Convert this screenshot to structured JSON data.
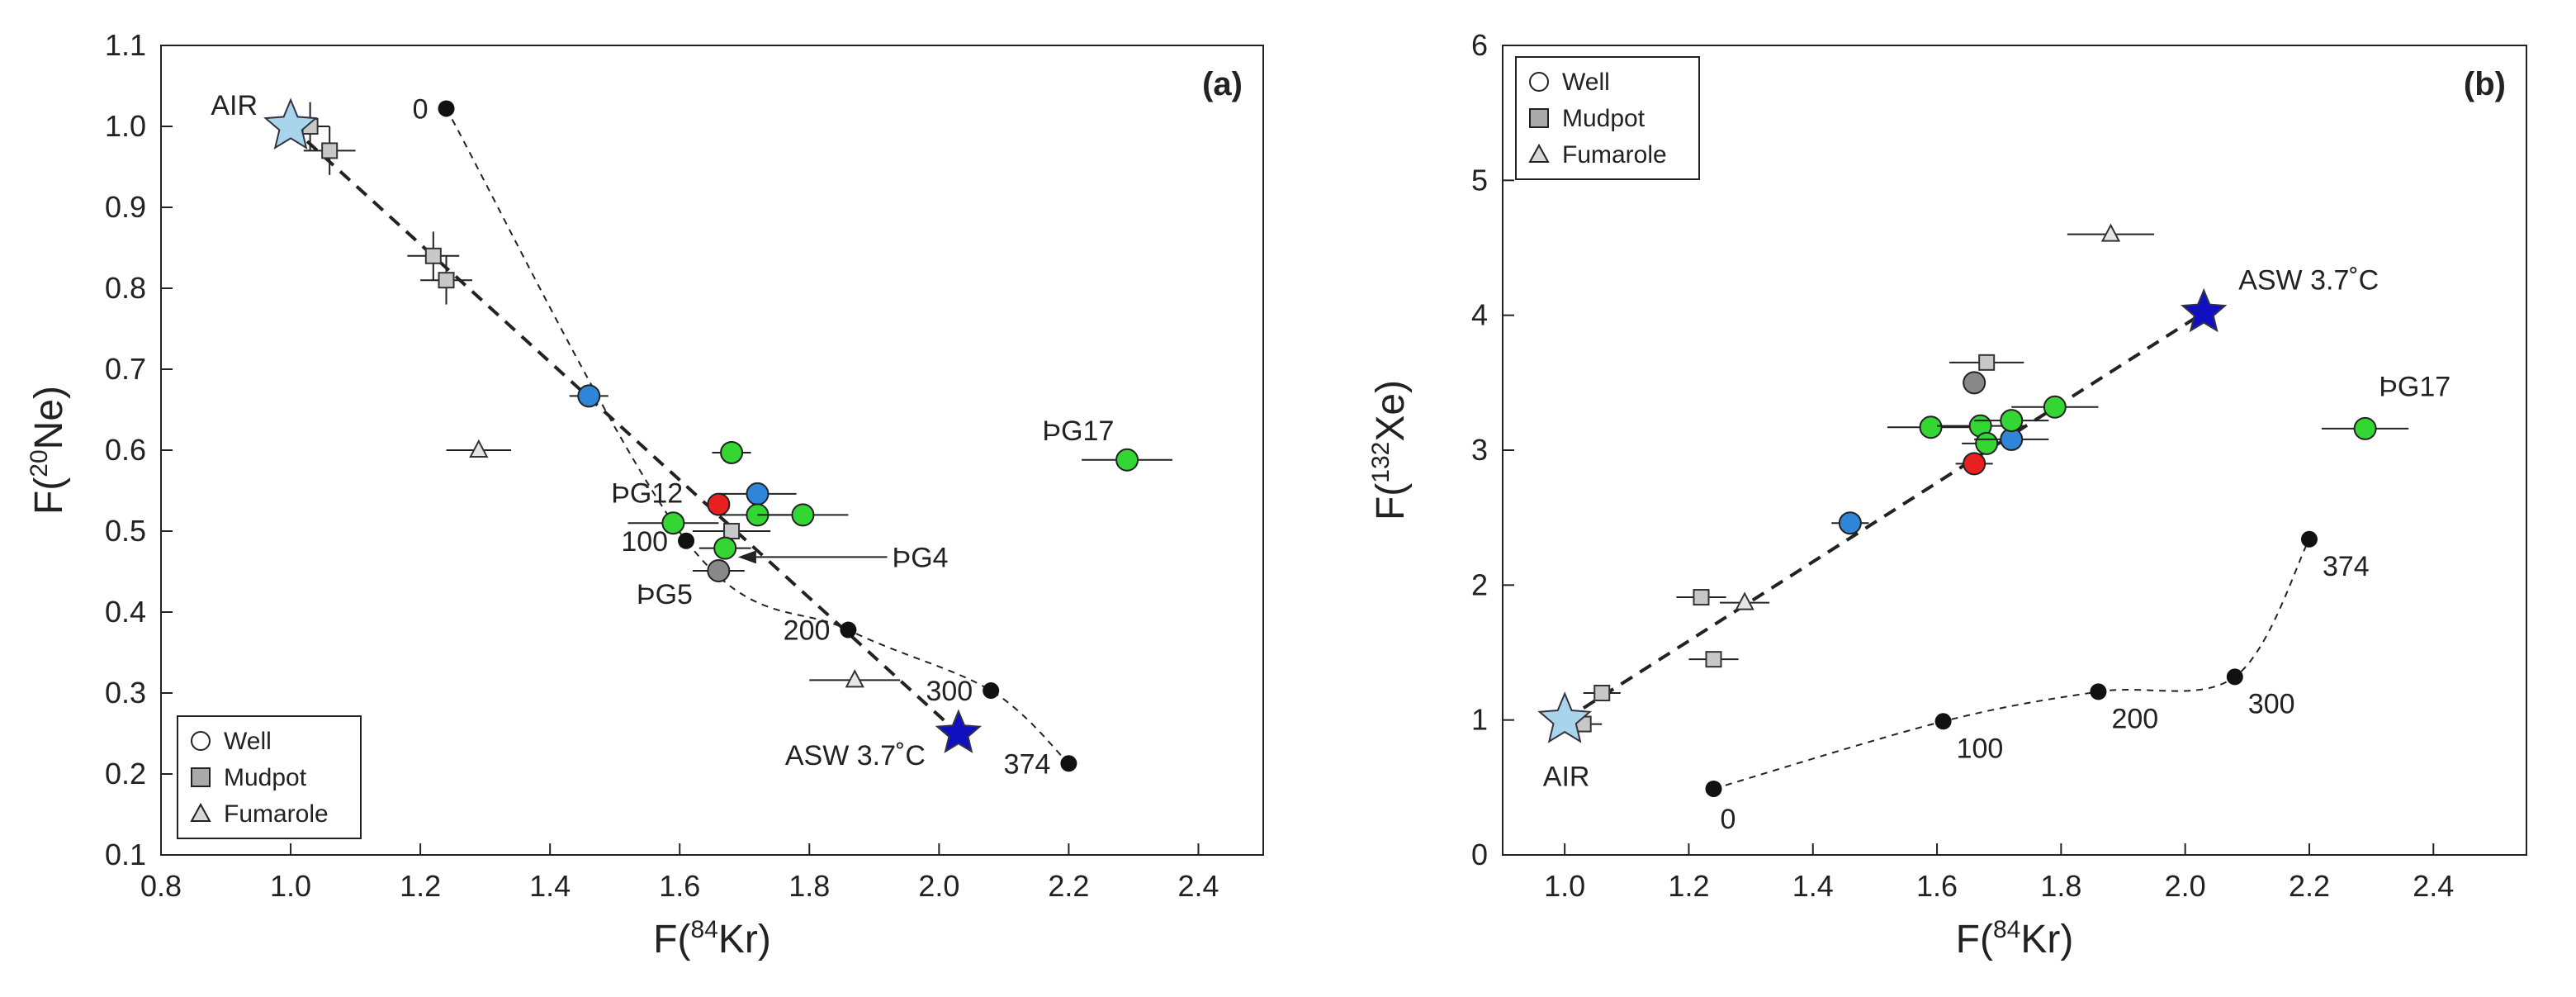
{
  "chart_data": [
    {
      "type": "scatter",
      "panel_label": "(a)",
      "xlabel": {
        "pre": "F(",
        "sup": "84",
        "post": "Kr)"
      },
      "ylabel": {
        "pre": "F(",
        "sup": "20",
        "post": "Ne)"
      },
      "xlim": [
        0.8,
        2.5
      ],
      "ylim": [
        0.1,
        1.1
      ],
      "xticks": [
        0.8,
        1.0,
        1.2,
        1.4,
        1.6,
        1.8,
        2.0,
        2.2,
        2.4
      ],
      "yticks": [
        0.1,
        0.2,
        0.3,
        0.4,
        0.5,
        0.6,
        0.7,
        0.8,
        0.9,
        1.0,
        1.1
      ],
      "xtick_labels": [
        "0.8",
        "1.0",
        "1.2",
        "1.4",
        "1.6",
        "1.8",
        "2.0",
        "2.2",
        "2.4"
      ],
      "ytick_labels": [
        "0.1",
        "0.2",
        "0.3",
        "0.4",
        "0.5",
        "0.6",
        "0.7",
        "0.8",
        "0.9",
        "1.0",
        "1.1"
      ],
      "legend": {
        "position": "bottom-left",
        "items": [
          {
            "label": "Well",
            "marker": "circle"
          },
          {
            "label": "Mudpot",
            "marker": "square"
          },
          {
            "label": "Fumarole",
            "marker": "triangle"
          }
        ]
      },
      "endmembers": [
        {
          "name": "AIR",
          "label": "AIR",
          "x": 1.0,
          "y": 1.0,
          "color": "#a8d4ec",
          "label_pos": "left"
        },
        {
          "name": "ASW",
          "label": "ASW 3.7˚C",
          "x": 2.03,
          "y": 0.25,
          "color": "#1010c0",
          "label_pos": "left"
        }
      ],
      "mixing_line": [
        [
          1.0,
          1.0
        ],
        [
          2.03,
          0.25
        ]
      ],
      "solubility_curve": {
        "points": [
          {
            "x": 1.24,
            "y": 1.022,
            "label": "0",
            "label_pos": "left"
          },
          {
            "x": 1.61,
            "y": 0.488,
            "label": "100",
            "label_pos": "left"
          },
          {
            "x": 1.86,
            "y": 0.378,
            "label": "200",
            "label_pos": "left"
          },
          {
            "x": 2.08,
            "y": 0.303,
            "label": "300",
            "label_pos": "left"
          },
          {
            "x": 2.2,
            "y": 0.213,
            "label": "374",
            "label_pos": "left"
          }
        ]
      },
      "wells": [
        {
          "x": 1.46,
          "y": 0.667,
          "color": "#2f86d8",
          "xerr": 0.03,
          "yerr": 0.0
        },
        {
          "x": 1.68,
          "y": 0.597,
          "color": "#33d633",
          "xerr": 0.03,
          "yerr": 0.0
        },
        {
          "x": 1.66,
          "y": 0.533,
          "color": "#e82020",
          "xerr": 0.0,
          "yerr": 0.0
        },
        {
          "x": 1.72,
          "y": 0.546,
          "color": "#2f86d8",
          "xerr": 0.06,
          "yerr": 0.0
        },
        {
          "x": 1.72,
          "y": 0.52,
          "color": "#33d633",
          "xerr": 0.06,
          "yerr": 0.0
        },
        {
          "x": 1.79,
          "y": 0.52,
          "color": "#33d633",
          "xerr": 0.07,
          "yerr": 0.0
        },
        {
          "x": 1.59,
          "y": 0.51,
          "color": "#33d633",
          "xerr": 0.07,
          "yerr": 0.0
        },
        {
          "x": 1.67,
          "y": 0.479,
          "color": "#33d633",
          "xerr": 0.04,
          "yerr": 0.0
        },
        {
          "x": 1.66,
          "y": 0.451,
          "color": "#888888",
          "xerr": 0.04,
          "yerr": 0.0
        },
        {
          "x": 2.29,
          "y": 0.588,
          "color": "#33d633",
          "xerr": 0.07,
          "yerr": 0.0
        }
      ],
      "mudpots": [
        {
          "x": 1.03,
          "y": 1.0,
          "xerr": 0.03,
          "yerr": 0.03
        },
        {
          "x": 1.06,
          "y": 0.97,
          "xerr": 0.04,
          "yerr": 0.03
        },
        {
          "x": 1.22,
          "y": 0.84,
          "xerr": 0.04,
          "yerr": 0.03
        },
        {
          "x": 1.24,
          "y": 0.81,
          "xerr": 0.04,
          "yerr": 0.03
        },
        {
          "x": 1.68,
          "y": 0.5,
          "xerr": 0.06,
          "yerr": 0.0
        }
      ],
      "fumaroles": [
        {
          "x": 1.29,
          "y": 0.6,
          "xerr": 0.05,
          "yerr": 0.0
        },
        {
          "x": 1.87,
          "y": 0.316,
          "xerr": 0.07,
          "yerr": 0.0
        }
      ],
      "arrow": {
        "from": [
          1.92,
          0.468
        ],
        "to": [
          1.69,
          0.468
        ],
        "label": "ÞG4"
      },
      "annotations": [
        {
          "text": "ÞG12",
          "x": 1.605,
          "y": 0.535,
          "anchor": "end"
        },
        {
          "text": "ÞG5",
          "x": 1.62,
          "y": 0.41,
          "anchor": "end"
        },
        {
          "text": "ÞG17",
          "x": 2.27,
          "y": 0.612,
          "anchor": "end"
        }
      ]
    },
    {
      "type": "scatter",
      "panel_label": "(b)",
      "xlabel": {
        "pre": "F(",
        "sup": "84",
        "post": "Kr)"
      },
      "ylabel": {
        "pre": "F(",
        "sup": "132",
        "post": "Xe)"
      },
      "xlim": [
        0.9,
        2.55
      ],
      "ylim": [
        0,
        6
      ],
      "xticks": [
        1.0,
        1.2,
        1.4,
        1.6,
        1.8,
        2.0,
        2.2,
        2.4
      ],
      "yticks": [
        0,
        1,
        2,
        3,
        4,
        5,
        6
      ],
      "xtick_labels": [
        "1.0",
        "1.2",
        "1.4",
        "1.6",
        "1.8",
        "2.0",
        "2.2",
        "2.4"
      ],
      "ytick_labels": [
        "0",
        "1",
        "2",
        "3",
        "4",
        "5",
        "6"
      ],
      "legend": {
        "position": "top-left",
        "items": [
          {
            "label": "Well",
            "marker": "circle"
          },
          {
            "label": "Mudpot",
            "marker": "square"
          },
          {
            "label": "Fumarole",
            "marker": "triangle"
          }
        ]
      },
      "endmembers": [
        {
          "name": "AIR",
          "label": "AIR",
          "x": 1.0,
          "y": 1.0,
          "color": "#a8d4ec",
          "label_pos": "below"
        },
        {
          "name": "ASW",
          "label": "ASW 3.7˚C",
          "x": 2.03,
          "y": 4.02,
          "color": "#1010c0",
          "label_pos": "right"
        }
      ],
      "mixing_line": [
        [
          1.0,
          1.0
        ],
        [
          2.03,
          4.02
        ]
      ],
      "solubility_curve": {
        "points": [
          {
            "x": 1.24,
            "y": 0.49,
            "label": "0",
            "label_pos": "below"
          },
          {
            "x": 1.61,
            "y": 0.99,
            "label": "100",
            "label_pos": "below-right"
          },
          {
            "x": 1.86,
            "y": 1.21,
            "label": "200",
            "label_pos": "below-right"
          },
          {
            "x": 2.08,
            "y": 1.32,
            "label": "300",
            "label_pos": "below-right"
          },
          {
            "x": 2.2,
            "y": 2.34,
            "label": "374",
            "label_pos": "below-right"
          }
        ]
      },
      "wells": [
        {
          "x": 1.46,
          "y": 2.46,
          "color": "#2f86d8",
          "xerr": 0.03,
          "yerr": 0.0
        },
        {
          "x": 1.66,
          "y": 2.9,
          "color": "#e82020",
          "xerr": 0.03,
          "yerr": 0.0
        },
        {
          "x": 1.66,
          "y": 3.5,
          "color": "#888888",
          "xerr": 0.0,
          "yerr": 0.0
        },
        {
          "x": 1.59,
          "y": 3.17,
          "color": "#33d633",
          "xerr": 0.07,
          "yerr": 0.0
        },
        {
          "x": 1.67,
          "y": 3.18,
          "color": "#33d633",
          "xerr": 0.07,
          "yerr": 0.0
        },
        {
          "x": 1.68,
          "y": 3.05,
          "color": "#33d633",
          "xerr": 0.04,
          "yerr": 0.0
        },
        {
          "x": 1.72,
          "y": 3.08,
          "color": "#2f86d8",
          "xerr": 0.06,
          "yerr": 0.0
        },
        {
          "x": 1.72,
          "y": 3.22,
          "color": "#33d633",
          "xerr": 0.06,
          "yerr": 0.0
        },
        {
          "x": 1.79,
          "y": 3.32,
          "color": "#33d633",
          "xerr": 0.07,
          "yerr": 0.0
        },
        {
          "x": 2.29,
          "y": 3.16,
          "color": "#33d633",
          "xerr": 0.07,
          "yerr": 0.0
        }
      ],
      "mudpots": [
        {
          "x": 1.68,
          "y": 3.65,
          "xerr": 0.06,
          "yerr": 0.0
        },
        {
          "x": 1.22,
          "y": 1.91,
          "xerr": 0.04,
          "yerr": 0.0
        },
        {
          "x": 1.24,
          "y": 1.45,
          "xerr": 0.04,
          "yerr": 0.0
        },
        {
          "x": 1.06,
          "y": 1.2,
          "xerr": 0.03,
          "yerr": 0.0
        },
        {
          "x": 1.03,
          "y": 0.97,
          "xerr": 0.03,
          "yerr": 0.0
        }
      ],
      "fumaroles": [
        {
          "x": 1.88,
          "y": 4.6,
          "xerr": 0.07,
          "yerr": 0.0
        },
        {
          "x": 1.29,
          "y": 1.87,
          "xerr": 0.04,
          "yerr": 0.0
        }
      ],
      "arrow": null,
      "annotations": [
        {
          "text": "ÞG17",
          "x": 2.37,
          "y": 3.4,
          "anchor": "middle"
        }
      ]
    }
  ]
}
